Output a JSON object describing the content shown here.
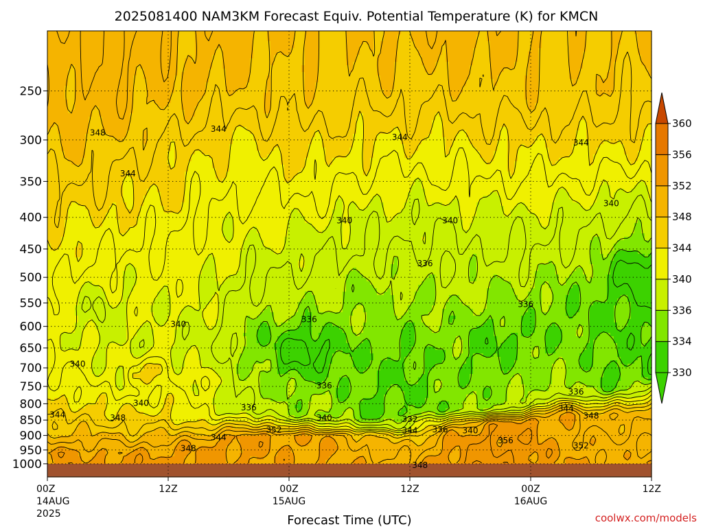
{
  "chart_data": {
    "type": "heatmap",
    "title": "2025081400 NAM3KM Forecast Equiv. Potential Temperature (K) for KMCN",
    "xlabel": "Forecast Time (UTC)",
    "ylabel": "",
    "x_ticks": [
      {
        "label": "00Z",
        "sub": "14AUG",
        "sub2": "2025",
        "hour": 0
      },
      {
        "label": "12Z",
        "sub": "",
        "sub2": "",
        "hour": 12
      },
      {
        "label": "00Z",
        "sub": "15AUG",
        "sub2": "",
        "hour": 24
      },
      {
        "label": "12Z",
        "sub": "",
        "sub2": "",
        "hour": 36
      },
      {
        "label": "00Z",
        "sub": "16AUG",
        "sub2": "",
        "hour": 48
      },
      {
        "label": "12Z",
        "sub": "",
        "sub2": "",
        "hour": 60
      }
    ],
    "xlim": [
      0,
      60
    ],
    "y_ticks": [
      250,
      300,
      350,
      400,
      450,
      500,
      550,
      600,
      650,
      700,
      750,
      800,
      850,
      900,
      950,
      1000
    ],
    "ylim": [
      1050,
      200
    ],
    "y_scale": "log",
    "grid": true,
    "colorbar": {
      "levels": [
        330,
        334,
        336,
        340,
        344,
        348,
        352,
        356,
        360
      ],
      "colors": [
        "#3cd200",
        "#82e600",
        "#c8f000",
        "#f0f000",
        "#f5cd00",
        "#f5b400",
        "#f09600",
        "#e67800",
        "#d25a00"
      ],
      "below_color": "#3cd200",
      "above_color": "#c84800",
      "ground_color": "#a0522d"
    },
    "contour_labels": [
      {
        "text": "348",
        "hour": 5,
        "p": 292
      },
      {
        "text": "344",
        "hour": 8,
        "p": 340
      },
      {
        "text": "344",
        "hour": 17,
        "p": 288
      },
      {
        "text": "344",
        "hour": 35,
        "p": 297
      },
      {
        "text": "344",
        "hour": 53,
        "p": 303
      },
      {
        "text": "340",
        "hour": 29.5,
        "p": 405
      },
      {
        "text": "340",
        "hour": 40,
        "p": 405
      },
      {
        "text": "340",
        "hour": 56,
        "p": 380
      },
      {
        "text": "336",
        "hour": 37.5,
        "p": 475
      },
      {
        "text": "336",
        "hour": 47.5,
        "p": 553
      },
      {
        "text": "336",
        "hour": 26,
        "p": 585
      },
      {
        "text": "340",
        "hour": 13,
        "p": 595
      },
      {
        "text": "340",
        "hour": 3,
        "p": 690
      },
      {
        "text": "336",
        "hour": 27.5,
        "p": 748
      },
      {
        "text": "336",
        "hour": 52.5,
        "p": 765
      },
      {
        "text": "340",
        "hour": 9.3,
        "p": 798
      },
      {
        "text": "336",
        "hour": 20,
        "p": 812
      },
      {
        "text": "344",
        "hour": 1,
        "p": 833
      },
      {
        "text": "348",
        "hour": 7,
        "p": 843
      },
      {
        "text": "340",
        "hour": 27.5,
        "p": 843
      },
      {
        "text": "332",
        "hour": 36,
        "p": 848
      },
      {
        "text": "344",
        "hour": 51.5,
        "p": 815
      },
      {
        "text": "348",
        "hour": 54,
        "p": 837
      },
      {
        "text": "352",
        "hour": 22.5,
        "p": 882
      },
      {
        "text": "344",
        "hour": 36,
        "p": 884
      },
      {
        "text": "336",
        "hour": 39,
        "p": 880
      },
      {
        "text": "340",
        "hour": 42,
        "p": 884
      },
      {
        "text": "344",
        "hour": 17,
        "p": 907
      },
      {
        "text": "356",
        "hour": 45.5,
        "p": 917
      },
      {
        "text": "348",
        "hour": 14,
        "p": 945
      },
      {
        "text": "352",
        "hour": 53,
        "p": 935
      },
      {
        "text": "348",
        "hour": 37,
        "p": 1005
      }
    ],
    "profiles": [
      {
        "hour": 0,
        "columns": [
          [
            200,
            350
          ],
          [
            280,
            348
          ],
          [
            420,
            344
          ],
          [
            620,
            341
          ],
          [
            800,
            344
          ],
          [
            880,
            347
          ],
          [
            960,
            353
          ],
          [
            1000,
            352
          ]
        ]
      },
      {
        "hour": 4,
        "columns": [
          [
            200,
            350
          ],
          [
            280,
            349
          ],
          [
            380,
            345
          ],
          [
            560,
            339
          ],
          [
            750,
            342
          ],
          [
            870,
            347
          ],
          [
            960,
            352
          ],
          [
            1000,
            352
          ]
        ]
      },
      {
        "hour": 8,
        "columns": [
          [
            200,
            350
          ],
          [
            260,
            349
          ],
          [
            350,
            345
          ],
          [
            480,
            341
          ],
          [
            700,
            339
          ],
          [
            860,
            345
          ],
          [
            960,
            352
          ],
          [
            1000,
            353
          ]
        ]
      },
      {
        "hour": 12,
        "columns": [
          [
            200,
            349
          ],
          [
            260,
            348
          ],
          [
            320,
            345
          ],
          [
            450,
            342
          ],
          [
            650,
            339
          ],
          [
            850,
            345
          ],
          [
            950,
            352
          ],
          [
            1000,
            353
          ]
        ]
      },
      {
        "hour": 16,
        "columns": [
          [
            200,
            349
          ],
          [
            250,
            348
          ],
          [
            310,
            344
          ],
          [
            420,
            341
          ],
          [
            640,
            339
          ],
          [
            840,
            341
          ],
          [
            920,
            352
          ],
          [
            1000,
            353
          ]
        ]
      },
      {
        "hour": 20,
        "columns": [
          [
            200,
            349
          ],
          [
            250,
            347
          ],
          [
            300,
            344
          ],
          [
            400,
            341
          ],
          [
            620,
            335
          ],
          [
            820,
            338
          ],
          [
            900,
            353
          ],
          [
            1000,
            352
          ]
        ]
      },
      {
        "hour": 24,
        "columns": [
          [
            200,
            348
          ],
          [
            270,
            347
          ],
          [
            320,
            344
          ],
          [
            420,
            340
          ],
          [
            640,
            334
          ],
          [
            840,
            336
          ],
          [
            900,
            352
          ],
          [
            1000,
            352
          ]
        ]
      },
      {
        "hour": 28,
        "columns": [
          [
            200,
            348
          ],
          [
            260,
            347
          ],
          [
            320,
            344
          ],
          [
            430,
            339
          ],
          [
            650,
            334
          ],
          [
            840,
            336
          ],
          [
            900,
            352
          ],
          [
            1000,
            352
          ]
        ]
      },
      {
        "hour": 32,
        "columns": [
          [
            200,
            348
          ],
          [
            250,
            347
          ],
          [
            300,
            344
          ],
          [
            400,
            339
          ],
          [
            680,
            334
          ],
          [
            850,
            334
          ],
          [
            890,
            348
          ],
          [
            1000,
            351
          ]
        ]
      },
      {
        "hour": 36,
        "columns": [
          [
            200,
            349
          ],
          [
            250,
            347
          ],
          [
            300,
            344
          ],
          [
            390,
            339
          ],
          [
            640,
            334
          ],
          [
            830,
            334
          ],
          [
            890,
            346
          ],
          [
            1000,
            351
          ]
        ]
      },
      {
        "hour": 40,
        "columns": [
          [
            200,
            349
          ],
          [
            250,
            347
          ],
          [
            300,
            344
          ],
          [
            400,
            339
          ],
          [
            620,
            335
          ],
          [
            820,
            335
          ],
          [
            880,
            352
          ],
          [
            1000,
            353
          ]
        ]
      },
      {
        "hour": 44,
        "columns": [
          [
            200,
            349
          ],
          [
            260,
            347
          ],
          [
            310,
            344
          ],
          [
            410,
            339
          ],
          [
            640,
            333
          ],
          [
            820,
            336
          ],
          [
            860,
            353
          ],
          [
            1000,
            355
          ]
        ]
      },
      {
        "hour": 48,
        "columns": [
          [
            200,
            348
          ],
          [
            260,
            347
          ],
          [
            310,
            344
          ],
          [
            400,
            339
          ],
          [
            620,
            334
          ],
          [
            800,
            337
          ],
          [
            850,
            353
          ],
          [
            1000,
            353
          ]
        ]
      },
      {
        "hour": 52,
        "columns": [
          [
            200,
            348
          ],
          [
            260,
            347
          ],
          [
            310,
            344
          ],
          [
            380,
            340
          ],
          [
            560,
            334
          ],
          [
            780,
            336
          ],
          [
            830,
            350
          ],
          [
            1000,
            352
          ]
        ]
      },
      {
        "hour": 56,
        "columns": [
          [
            200,
            348
          ],
          [
            250,
            347
          ],
          [
            310,
            344
          ],
          [
            380,
            339
          ],
          [
            500,
            334
          ],
          [
            760,
            334
          ],
          [
            830,
            349
          ],
          [
            1000,
            351
          ]
        ]
      },
      {
        "hour": 60,
        "columns": [
          [
            200,
            348
          ],
          [
            250,
            347
          ],
          [
            300,
            344
          ],
          [
            360,
            340
          ],
          [
            480,
            333
          ],
          [
            720,
            333
          ],
          [
            820,
            349
          ],
          [
            1000,
            351
          ]
        ]
      }
    ],
    "blobs": [
      {
        "hour": 5.2,
        "p": 560,
        "dh": 0.6,
        "dp": 40,
        "dv": -3
      },
      {
        "hour": 9.7,
        "p": 700,
        "dh": 0.9,
        "dp": 40,
        "dv": 4
      },
      {
        "hour": 11.3,
        "p": 700,
        "dh": 0.8,
        "dp": 35,
        "dv": 5
      },
      {
        "hour": 8.5,
        "p": 720,
        "dh": 0.7,
        "dp": 30,
        "dv": 4
      },
      {
        "hour": 15.5,
        "p": 740,
        "dh": 0.6,
        "dp": 30,
        "dv": 4
      },
      {
        "hour": 25.5,
        "p": 660,
        "dh": 3,
        "dp": 60,
        "dv": -3
      },
      {
        "hour": 31.5,
        "p": 520,
        "dh": 1.5,
        "dp": 40,
        "dv": -2
      },
      {
        "hour": 58.5,
        "p": 490,
        "dh": 2,
        "dp": 50,
        "dv": -3
      },
      {
        "hour": 51.3,
        "p": 800,
        "dh": 1,
        "dp": 40,
        "dv": 6
      },
      {
        "hour": 34,
        "p": 880,
        "dh": 6,
        "dp": 20,
        "dv": -4
      }
    ],
    "credit": "coolwx.com/models"
  }
}
